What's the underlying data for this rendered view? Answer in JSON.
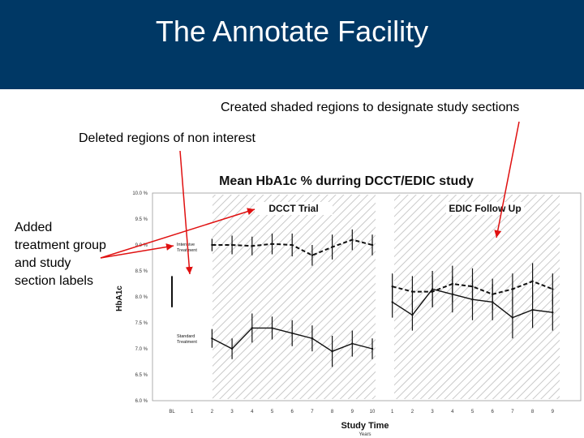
{
  "slide": {
    "title": "The Annotate Facility",
    "annotations": [
      "Created shaded regions to designate study sections",
      "Deleted regions of non interest",
      "Added treatment group and study section labels"
    ],
    "colors": {
      "header_bg": "#003865",
      "arrow": "#e01010"
    }
  },
  "chart_data": {
    "type": "line",
    "title": "Mean HbA1c % durring DCCT/EDIC study",
    "xlabel": "Study Time",
    "xlabel_sub": "Years",
    "ylabel": "HbA1c",
    "y_ticks": [
      "10.0 %",
      "9.5 %",
      "9.0 %",
      "8.5 %",
      "8.0 %",
      "7.5 %",
      "7.0 %",
      "6.5 %",
      "6.0 %"
    ],
    "ylim": [
      6.0,
      10.0
    ],
    "x_ticks": [
      "BL",
      "1",
      "2",
      "3",
      "4",
      "5",
      "6",
      "7",
      "8",
      "9",
      "10",
      "1",
      "2",
      "3",
      "4",
      "5",
      "6",
      "7",
      "8",
      "9"
    ],
    "sections": [
      {
        "label": "DCCT Trial",
        "shaded": true
      },
      {
        "label": "EDIC Follow Up",
        "shaded": true
      }
    ],
    "group_labels": {
      "intensive": [
        "Intensive",
        "Treatment"
      ],
      "standard": [
        "Standard",
        "Treatment"
      ]
    },
    "series": [
      {
        "name": "Intensive Treatment",
        "dashed": true,
        "dcct": {
          "x": [
            2,
            3,
            4,
            5,
            6,
            7,
            8,
            9,
            10
          ],
          "y": [
            9.0,
            9.0,
            8.98,
            9.02,
            9.0,
            8.8,
            8.96,
            9.1,
            9.0
          ],
          "err": [
            0.12,
            0.18,
            0.18,
            0.2,
            0.22,
            0.2,
            0.24,
            0.2,
            0.2
          ]
        },
        "edic": {
          "x": [
            1,
            2,
            3,
            4,
            5,
            6,
            7,
            8,
            9
          ],
          "y": [
            8.2,
            8.1,
            8.1,
            8.25,
            8.2,
            8.05,
            8.15,
            8.3,
            8.15
          ],
          "err": [
            0.25,
            0.3,
            0.3,
            0.35,
            0.35,
            0.3,
            0.3,
            0.35,
            0.3
          ]
        }
      },
      {
        "name": "Standard Treatment",
        "dashed": false,
        "dcct": {
          "x": [
            2,
            3,
            4,
            5,
            6,
            7,
            8,
            9,
            10
          ],
          "y": [
            7.2,
            7.0,
            7.4,
            7.4,
            7.3,
            7.2,
            6.95,
            7.1,
            7.0
          ],
          "err": [
            0.18,
            0.2,
            0.28,
            0.22,
            0.25,
            0.25,
            0.3,
            0.25,
            0.2
          ]
        },
        "edic": {
          "x": [
            1,
            2,
            3,
            4,
            5,
            6,
            7,
            8,
            9
          ],
          "y": [
            7.9,
            7.65,
            8.15,
            8.05,
            7.95,
            7.9,
            7.6,
            7.75,
            7.7
          ],
          "err": [
            0.3,
            0.3,
            0.35,
            0.35,
            0.4,
            0.35,
            0.4,
            0.35,
            0.35
          ]
        }
      }
    ],
    "baseline_bar": {
      "x": "BL",
      "y_low": 7.8,
      "y_high": 8.4
    }
  }
}
